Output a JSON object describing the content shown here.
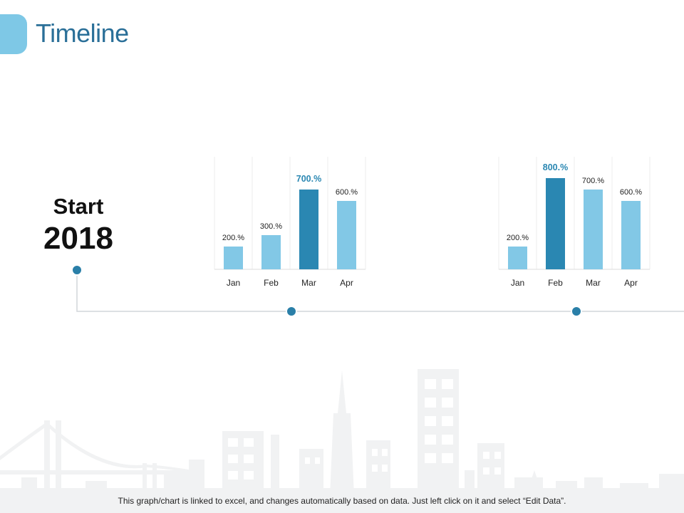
{
  "header": {
    "title": "Timeline"
  },
  "start": {
    "label": "Start",
    "year": "2018"
  },
  "footer": {
    "note": "This graph/chart is linked to excel, and changes automatically based on data. Just left click on it and select “Edit Data”."
  },
  "colors": {
    "bar": "#82c8e6",
    "bar_highlight": "#2a87b2",
    "accent": "#7ec8e6",
    "title": "#2a6f98",
    "dot": "#2a7fa8"
  },
  "chart_data": [
    {
      "type": "bar",
      "categories": [
        "Jan",
        "Feb",
        "Mar",
        "Apr"
      ],
      "values": [
        200,
        300,
        700,
        600
      ],
      "value_labels": [
        "200.%",
        "300.%",
        "700.%",
        "600.%"
      ],
      "highlight_index": 2,
      "ylim": [
        0,
        900
      ],
      "grid": false
    },
    {
      "type": "bar",
      "categories": [
        "Jan",
        "Feb",
        "Mar",
        "Apr"
      ],
      "values": [
        200,
        800,
        700,
        600
      ],
      "value_labels": [
        "200.%",
        "800.%",
        "700.%",
        "600.%"
      ],
      "highlight_index": 1,
      "ylim": [
        0,
        900
      ],
      "grid": false
    }
  ]
}
